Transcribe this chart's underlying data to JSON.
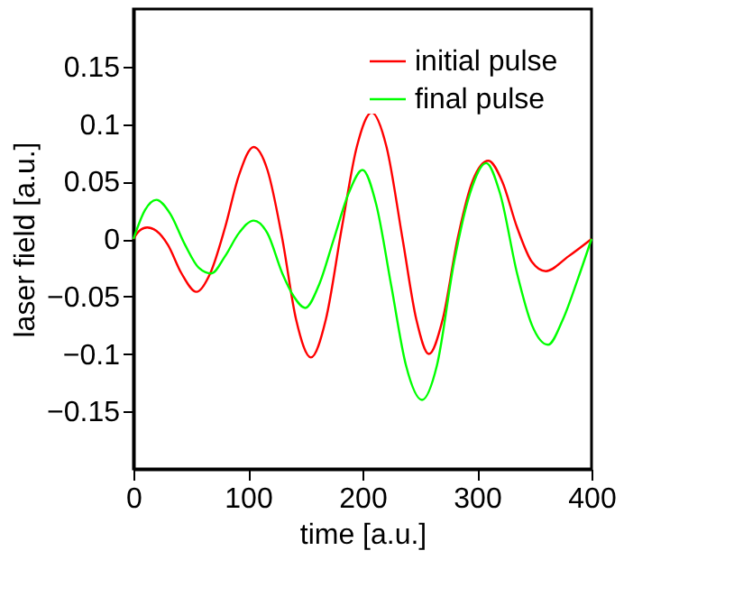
{
  "chart_data": {
    "type": "line",
    "xlabel": "time [a.u.]",
    "ylabel": "laser field [a.u.]",
    "xlim": [
      0,
      400
    ],
    "xticks": [
      0,
      100,
      200,
      300,
      400
    ],
    "ylim": [
      -0.2,
      0.2
    ],
    "yticks": [
      -0.15,
      -0.1,
      -0.05,
      0,
      0.05,
      0.1,
      0.15
    ],
    "grid": false,
    "legend": "top right",
    "marker": "none",
    "line_style": "solid",
    "series": [
      {
        "name": "initial pulse",
        "color": "#ff0000",
        "x": [
          0,
          5,
          12,
          20,
          30,
          42,
          55,
          67,
          80,
          92,
          105,
          117,
          130,
          142,
          155,
          168,
          182,
          195,
          208,
          221,
          235,
          247,
          258,
          270,
          283,
          296,
          310,
          322,
          335,
          348,
          360,
          380,
          400
        ],
        "values": [
          0,
          0.007,
          0.01,
          0.007,
          -0.005,
          -0.03,
          -0.046,
          -0.03,
          0.01,
          0.055,
          0.08,
          0.06,
          0.0,
          -0.07,
          -0.103,
          -0.07,
          0.01,
          0.08,
          0.11,
          0.08,
          0.0,
          -0.07,
          -0.1,
          -0.07,
          0.0,
          0.05,
          0.068,
          0.05,
          0.01,
          -0.02,
          -0.028,
          -0.015,
          0
        ]
      },
      {
        "name": "final pulse",
        "color": "#00ff00",
        "x": [
          0,
          10,
          20,
          32,
          45,
          57,
          68,
          80,
          92,
          105,
          117,
          130,
          140,
          150,
          162,
          175,
          188,
          200,
          212,
          225,
          238,
          252,
          265,
          280,
          294,
          308,
          320,
          335,
          348,
          362,
          375,
          388,
          400
        ],
        "values": [
          0,
          0.025,
          0.034,
          0.022,
          -0.005,
          -0.025,
          -0.03,
          -0.015,
          0.005,
          0.016,
          0.005,
          -0.03,
          -0.05,
          -0.06,
          -0.04,
          0.0,
          0.04,
          0.06,
          0.03,
          -0.04,
          -0.11,
          -0.14,
          -0.11,
          -0.02,
          0.04,
          0.066,
          0.04,
          -0.03,
          -0.075,
          -0.092,
          -0.07,
          -0.035,
          0
        ]
      }
    ]
  }
}
